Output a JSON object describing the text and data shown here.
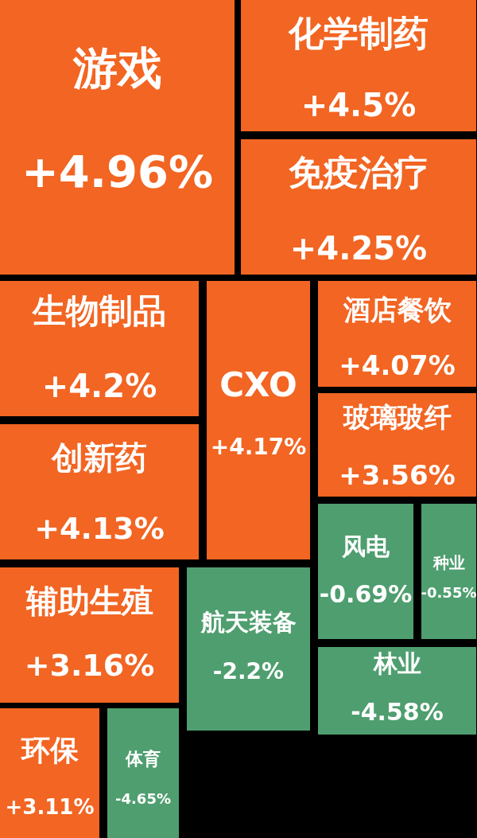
{
  "chart_data": {
    "type": "other",
    "categories": [
      "游戏",
      "化学制药",
      "免疫治疗",
      "生物制品",
      "创新药",
      "CXO",
      "酒店餐饮",
      "玻璃玻纤",
      "风电",
      "种业",
      "林业",
      "辅助生殖",
      "航天装备",
      "环保",
      "体育"
    ],
    "values": [
      4.96,
      4.5,
      4.25,
      4.2,
      4.13,
      4.17,
      4.07,
      3.56,
      -0.69,
      -0.55,
      -4.58,
      3.16,
      -2.2,
      3.11,
      -4.65
    ],
    "value_labels": [
      "+4.96%",
      "+4.5%",
      "+4.25%",
      "+4.2%",
      "+4.13%",
      "+4.17%",
      "+4.07%",
      "+3.56%",
      "-0.69%",
      "-0.55%",
      "-4.58%",
      "+3.16%",
      "-2.2%",
      "+3.11%",
      "-4.65%"
    ],
    "colors": [
      "#f26522",
      "#f26522",
      "#f26522",
      "#f26522",
      "#f26522",
      "#f26522",
      "#f26522",
      "#f26522",
      "#4f9e6f",
      "#4f9e6f",
      "#4f9e6f",
      "#f26522",
      "#4f9e6f",
      "#f26522",
      "#4f9e6f"
    ]
  }
}
